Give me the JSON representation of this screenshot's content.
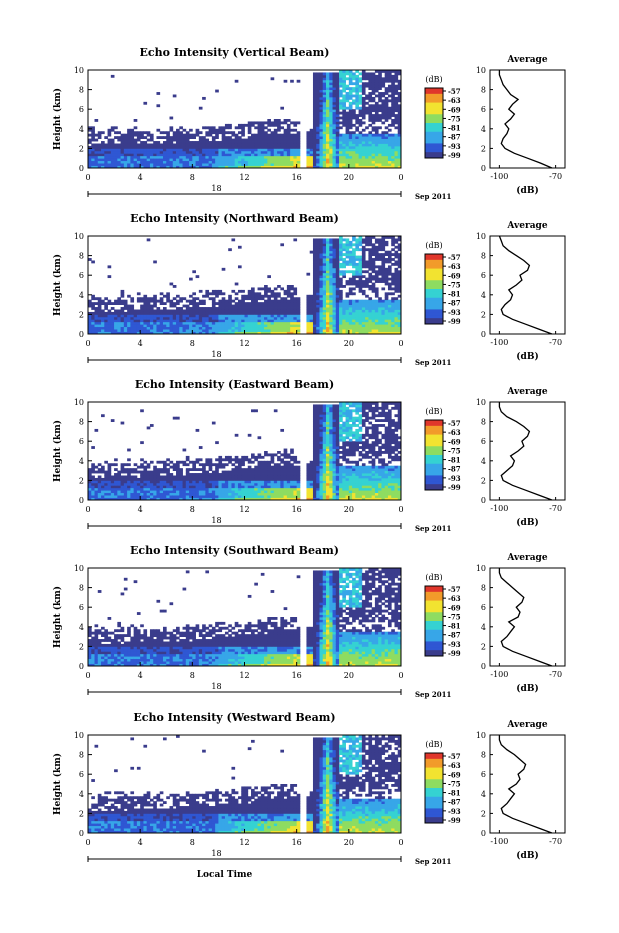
{
  "figure": {
    "xlabel": "Local Time",
    "date_left": "18",
    "date_right": "Sep 2011"
  },
  "colors": {
    "white": "#ffffff",
    "navy": "#3a3c8c",
    "blue": "#2f57d3",
    "sky": "#37a6e8",
    "cyan": "#35d2d2",
    "green": "#8edc61",
    "yellow": "#f2e330",
    "orange": "#f29b2a",
    "red": "#e0362b"
  },
  "chart_data": [
    {
      "type": "heatmap",
      "title": "Echo Intensity (Vertical Beam)",
      "ylabel": "Height (km)",
      "x_ticks": [
        "0",
        "4",
        "8",
        "12",
        "16",
        "20",
        "0"
      ],
      "y_ticks": [
        "0",
        "2",
        "4",
        "6",
        "8",
        "10"
      ],
      "xlim": [
        0,
        24
      ],
      "ylim": [
        0,
        10
      ],
      "date_label": "18",
      "colorbar": {
        "unit": "(dB)",
        "ticks": [
          "-57",
          "-63",
          "-69",
          "-75",
          "-81",
          "-87",
          "-93",
          "-99"
        ]
      },
      "profile": {
        "title": "Average",
        "xlabel": "(dB)",
        "x_ticks": [
          "-100",
          "-70"
        ],
        "y_ticks": [
          "0",
          "2",
          "4",
          "6",
          "8",
          "10"
        ],
        "xlim": [
          -105,
          -65
        ],
        "ylim": [
          0,
          10
        ],
        "heights": [
          0,
          0.5,
          1,
          1.5,
          2,
          2.5,
          3,
          3.5,
          4,
          4.5,
          5,
          5.5,
          6,
          6.5,
          7,
          7.5,
          8,
          8.5,
          9,
          9.5,
          10
        ],
        "values": [
          -72,
          -78,
          -85,
          -92,
          -97,
          -99,
          -98,
          -96,
          -95,
          -97,
          -94,
          -92,
          -95,
          -93,
          -90,
          -94,
          -96,
          -98,
          -99,
          -100,
          -100
        ]
      }
    },
    {
      "type": "heatmap",
      "title": "Echo Intensity (Northward Beam)",
      "ylabel": "Height (km)",
      "x_ticks": [
        "0",
        "4",
        "8",
        "12",
        "16",
        "20",
        "0"
      ],
      "y_ticks": [
        "0",
        "2",
        "4",
        "6",
        "8",
        "10"
      ],
      "xlim": [
        0,
        24
      ],
      "ylim": [
        0,
        10
      ],
      "date_label": "18",
      "colorbar": {
        "unit": "(dB)",
        "ticks": [
          "-57",
          "-63",
          "-69",
          "-75",
          "-81",
          "-87",
          "-93",
          "-99"
        ]
      },
      "profile": {
        "title": "Average",
        "xlabel": "(dB)",
        "x_ticks": [
          "-100",
          "-70"
        ],
        "y_ticks": [
          "0",
          "2",
          "4",
          "6",
          "8",
          "10"
        ],
        "xlim": [
          -105,
          -65
        ],
        "ylim": [
          0,
          10
        ],
        "heights": [
          0,
          0.5,
          1,
          1.5,
          2,
          2.5,
          3,
          3.5,
          4,
          4.5,
          5,
          5.5,
          6,
          6.5,
          7,
          7.5,
          8,
          8.5,
          9,
          9.5,
          10
        ],
        "values": [
          -72,
          -79,
          -86,
          -93,
          -98,
          -99,
          -97,
          -94,
          -93,
          -95,
          -91,
          -88,
          -89,
          -85,
          -84,
          -87,
          -91,
          -95,
          -98,
          -99,
          -100
        ]
      }
    },
    {
      "type": "heatmap",
      "title": "Echo Intensity (Eastward Beam)",
      "ylabel": "Height (km)",
      "x_ticks": [
        "0",
        "4",
        "8",
        "12",
        "16",
        "20",
        "0"
      ],
      "y_ticks": [
        "0",
        "2",
        "4",
        "6",
        "8",
        "10"
      ],
      "xlim": [
        0,
        24
      ],
      "ylim": [
        0,
        10
      ],
      "date_label": "18",
      "colorbar": {
        "unit": "(dB)",
        "ticks": [
          "-57",
          "-63",
          "-69",
          "-75",
          "-81",
          "-87",
          "-93",
          "-99"
        ]
      },
      "profile": {
        "title": "Average",
        "xlabel": "(dB)",
        "x_ticks": [
          "-100",
          "-70"
        ],
        "y_ticks": [
          "0",
          "2",
          "4",
          "6",
          "8",
          "10"
        ],
        "xlim": [
          -105,
          -65
        ],
        "ylim": [
          0,
          10
        ],
        "heights": [
          0,
          0.5,
          1,
          1.5,
          2,
          2.5,
          3,
          3.5,
          4,
          4.5,
          5,
          5.5,
          6,
          6.5,
          7,
          7.5,
          8,
          8.5,
          9,
          9.5,
          10
        ],
        "values": [
          -72,
          -79,
          -86,
          -93,
          -98,
          -99,
          -96,
          -93,
          -92,
          -94,
          -90,
          -87,
          -88,
          -85,
          -84,
          -87,
          -91,
          -96,
          -99,
          -100,
          -100
        ]
      }
    },
    {
      "type": "heatmap",
      "title": "Echo Intensity (Southward Beam)",
      "ylabel": "Height (km)",
      "x_ticks": [
        "0",
        "4",
        "8",
        "12",
        "16",
        "20",
        "0"
      ],
      "y_ticks": [
        "0",
        "2",
        "4",
        "6",
        "8",
        "10"
      ],
      "xlim": [
        0,
        24
      ],
      "ylim": [
        0,
        10
      ],
      "date_label": "18",
      "colorbar": {
        "unit": "(dB)",
        "ticks": [
          "-57",
          "-63",
          "-69",
          "-75",
          "-81",
          "-87",
          "-93",
          "-99"
        ]
      },
      "profile": {
        "title": "Average",
        "xlabel": "(dB)",
        "x_ticks": [
          "-100",
          "-70"
        ],
        "y_ticks": [
          "0",
          "2",
          "4",
          "6",
          "8",
          "10"
        ],
        "xlim": [
          -105,
          -65
        ],
        "ylim": [
          0,
          10
        ],
        "heights": [
          0,
          0.5,
          1,
          1.5,
          2,
          2.5,
          3,
          3.5,
          4,
          4.5,
          5,
          5.5,
          6,
          6.5,
          7,
          7.5,
          8,
          8.5,
          9,
          9.5,
          10
        ],
        "values": [
          -72,
          -79,
          -86,
          -93,
          -98,
          -99,
          -96,
          -94,
          -92,
          -95,
          -90,
          -89,
          -91,
          -88,
          -87,
          -90,
          -93,
          -96,
          -99,
          -100,
          -100
        ]
      }
    },
    {
      "type": "heatmap",
      "title": "Echo Intensity (Westward Beam)",
      "ylabel": "Height (km)",
      "x_ticks": [
        "0",
        "4",
        "8",
        "12",
        "16",
        "20",
        "0"
      ],
      "y_ticks": [
        "0",
        "2",
        "4",
        "6",
        "8",
        "10"
      ],
      "xlim": [
        0,
        24
      ],
      "ylim": [
        0,
        10
      ],
      "date_label": "18",
      "colorbar": {
        "unit": "(dB)",
        "ticks": [
          "-57",
          "-63",
          "-69",
          "-75",
          "-81",
          "-87",
          "-93",
          "-99"
        ]
      },
      "profile": {
        "title": "Average",
        "xlabel": "(dB)",
        "x_ticks": [
          "-100",
          "-70"
        ],
        "y_ticks": [
          "0",
          "2",
          "4",
          "6",
          "8",
          "10"
        ],
        "xlim": [
          -105,
          -65
        ],
        "ylim": [
          0,
          10
        ],
        "heights": [
          0,
          0.5,
          1,
          1.5,
          2,
          2.5,
          3,
          3.5,
          4,
          4.5,
          5,
          5.5,
          6,
          6.5,
          7,
          7.5,
          8,
          8.5,
          9,
          9.5,
          10
        ],
        "values": [
          -72,
          -79,
          -86,
          -93,
          -98,
          -99,
          -96,
          -94,
          -92,
          -95,
          -91,
          -89,
          -90,
          -87,
          -86,
          -89,
          -92,
          -96,
          -99,
          -100,
          -100
        ]
      }
    }
  ]
}
